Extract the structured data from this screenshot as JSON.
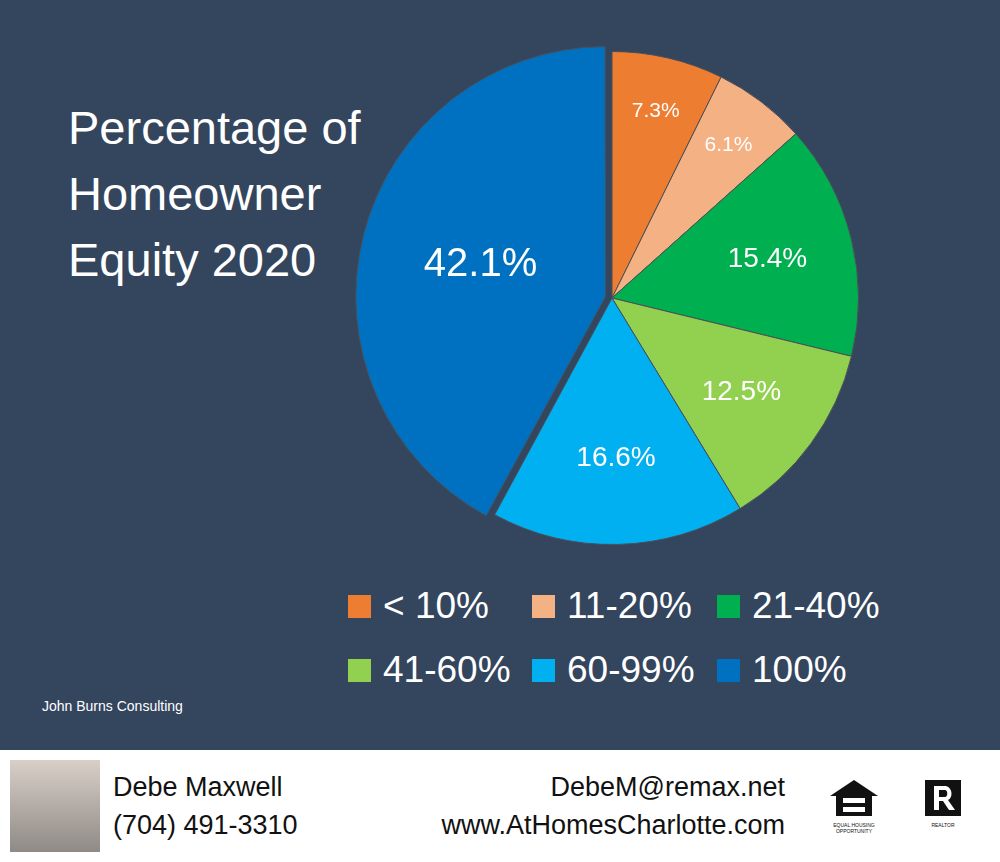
{
  "chart_data": {
    "type": "pie",
    "title": "Percentage of Homeowner Equity 2020",
    "categories": [
      "< 10%",
      "11-20%",
      "21-40%",
      "41-60%",
      "60-99%",
      "100%"
    ],
    "values": [
      7.3,
      6.1,
      15.4,
      12.5,
      16.6,
      42.1
    ],
    "value_labels": [
      "7.3%",
      "6.1%",
      "15.4%",
      "12.5%",
      "16.6%",
      "42.1%"
    ],
    "colors": [
      "#ed7d31",
      "#f4b183",
      "#00b050",
      "#92d050",
      "#00b0f0",
      "#0070c0"
    ],
    "data_labels": true,
    "legend": "bottom",
    "source": "John Burns Consulting"
  },
  "footer": {
    "name": "Debe Maxwell",
    "phone": "(704) 491-3310",
    "email": "DebeM@remax.net",
    "website": "www.AtHomesCharlotte.com",
    "badges": [
      "EQUAL HOUSING OPPORTUNITY",
      "REALTOR"
    ]
  }
}
